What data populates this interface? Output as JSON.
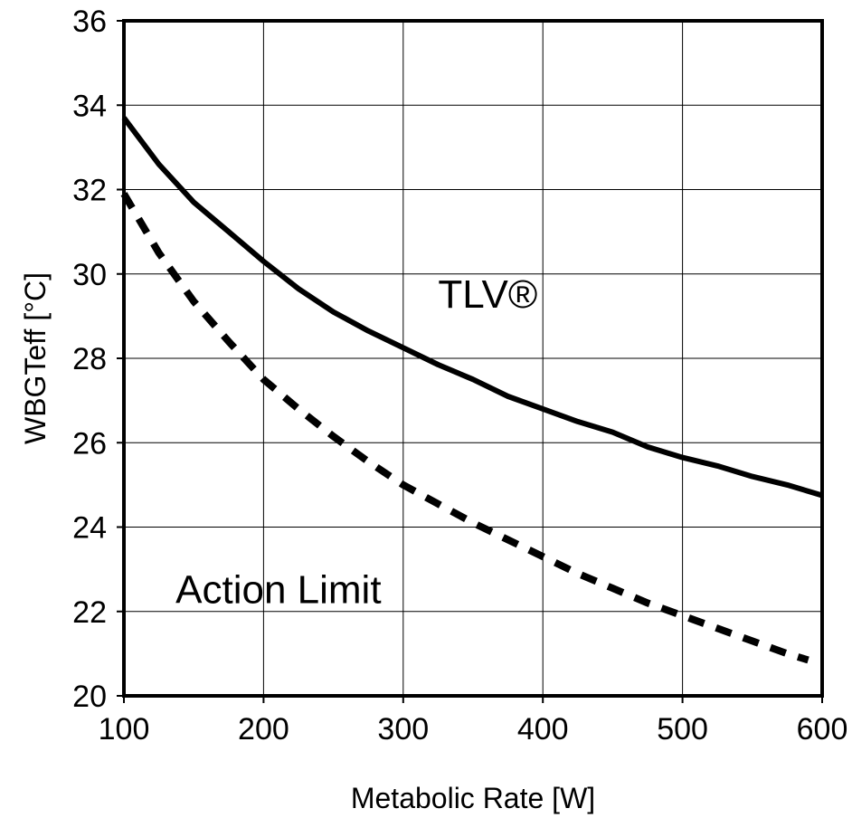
{
  "chart_data": {
    "type": "line",
    "title": "",
    "xlabel": "Metabolic Rate [W]",
    "ylabel": "WBGTeff [°C]",
    "xlim": [
      100,
      600
    ],
    "ylim": [
      20,
      36
    ],
    "xticks": [
      100,
      200,
      300,
      400,
      500,
      600
    ],
    "yticks": [
      20,
      22,
      24,
      26,
      28,
      30,
      32,
      34,
      36
    ],
    "grid": true,
    "series": [
      {
        "style": "solid",
        "x": [
          100,
          125,
          150,
          175,
          200,
          225,
          250,
          275,
          300,
          325,
          350,
          375,
          400,
          425,
          450,
          475,
          500,
          525,
          550,
          575,
          600
        ],
        "y": [
          33.7,
          32.6,
          31.7,
          31.0,
          30.3,
          29.65,
          29.1,
          28.65,
          28.25,
          27.85,
          27.5,
          27.1,
          26.8,
          26.5,
          26.25,
          25.9,
          25.65,
          25.45,
          25.2,
          25.0,
          24.75
        ]
      },
      {
        "style": "dashed",
        "x": [
          100,
          125,
          150,
          175,
          200,
          225,
          250,
          275,
          300,
          325,
          350,
          375,
          400,
          425,
          450,
          475,
          500,
          525,
          550,
          575,
          590
        ],
        "y": [
          31.9,
          30.5,
          29.35,
          28.4,
          27.5,
          26.8,
          26.15,
          25.55,
          25.0,
          24.55,
          24.1,
          23.7,
          23.3,
          22.9,
          22.55,
          22.2,
          21.9,
          21.6,
          21.3,
          21.0,
          20.85
        ]
      }
    ],
    "annotations": [
      {
        "text": "TLV®",
        "x": 325,
        "y": 29.2
      },
      {
        "text": "Action Limit",
        "x": 137,
        "y": 22.2
      }
    ]
  }
}
